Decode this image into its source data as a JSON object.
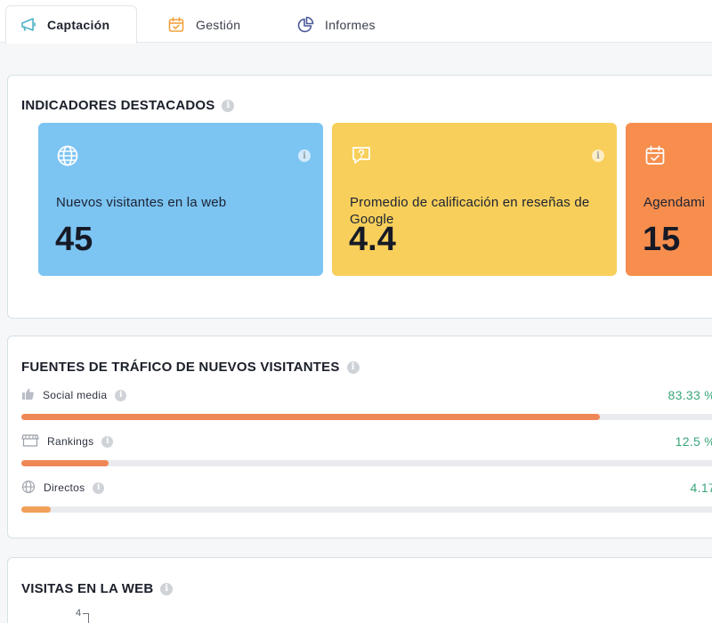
{
  "tabs": [
    {
      "label": "Captación",
      "icon": "megaphone-icon",
      "active": true
    },
    {
      "label": "Gestión",
      "icon": "calendar-check-icon",
      "active": false
    },
    {
      "label": "Informes",
      "icon": "pie-chart-icon",
      "active": false
    }
  ],
  "highlights": {
    "title": "INDICADORES DESTACADOS",
    "cards": [
      {
        "icon": "globe-icon",
        "label": "Nuevos visitantes en la web",
        "value": "45",
        "color": "#7cc4f2"
      },
      {
        "icon": "question-bubble-icon",
        "label": "Promedio de calificación en reseñas de Google",
        "value": "4.4",
        "color": "#f8cf5a"
      },
      {
        "icon": "calendar-check-icon",
        "label": "Agendami",
        "value": "15",
        "color": "#f78e4d"
      }
    ]
  },
  "traffic": {
    "title": "FUENTES DE TRÁFICO DE NUEVOS VISITANTES",
    "sources": [
      {
        "icon": "thumbs-up-icon",
        "label": "Social media",
        "percent_text": "83.33 %",
        "fraction": 0.8333
      },
      {
        "icon": "storefront-icon",
        "label": "Rankings",
        "percent_text": "12.5 %",
        "fraction": 0.125
      },
      {
        "icon": "globe-icon",
        "label": "Directos",
        "percent_text": "4.17",
        "fraction": 0.0417
      }
    ]
  },
  "visits": {
    "title": "VISITAS EN LA WEB",
    "y_top_tick": "4"
  },
  "colors": {
    "accent_green": "#3aa67a",
    "bar_orange": "#ef8656"
  }
}
